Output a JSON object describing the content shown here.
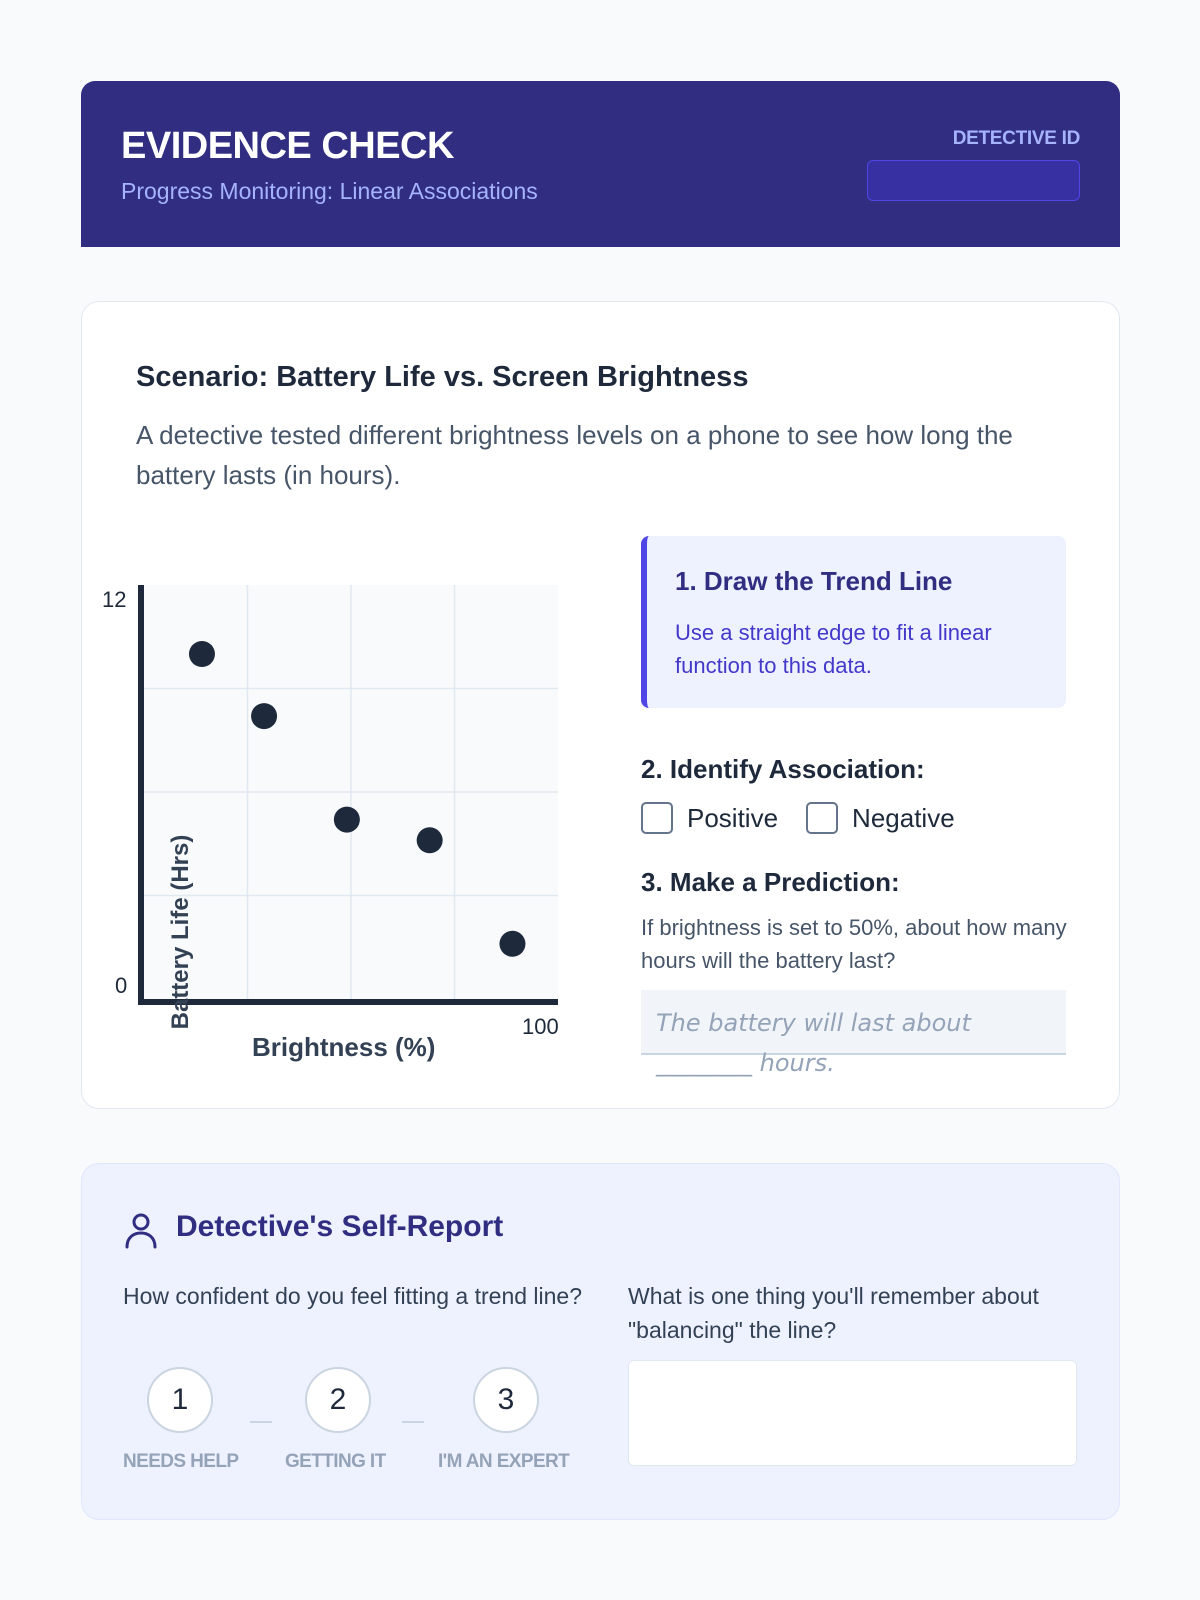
{
  "header": {
    "title": "EVIDENCE CHECK",
    "subtitle": "Progress Monitoring: Linear Associations",
    "detective_id_label": "DETECTIVE ID",
    "detective_id_value": ""
  },
  "scenario": {
    "title": "Scenario: Battery Life vs. Screen Brightness",
    "description": "A detective tested different brightness levels on a phone to see how long the battery lasts (in hours)."
  },
  "chart_data": {
    "type": "scatter",
    "xlabel": "Brightness (%)",
    "ylabel": "Battery Life (Hrs)",
    "xlim": [
      0,
      100
    ],
    "ylim": [
      0,
      12
    ],
    "x_tick_labels": [
      "100"
    ],
    "y_tick_labels": [
      "0",
      "12"
    ],
    "grid": true,
    "points": [
      {
        "x": 14,
        "y": 10
      },
      {
        "x": 29,
        "y": 8.2
      },
      {
        "x": 49,
        "y": 5.2
      },
      {
        "x": 69,
        "y": 4.6
      },
      {
        "x": 89,
        "y": 1.6
      }
    ]
  },
  "tasks": {
    "task1_title": "1. Draw the Trend Line",
    "task1_text": "Use a straight edge to fit a linear function to this data.",
    "task2_title": "2. Identify Association:",
    "options": [
      "Positive",
      "Negative"
    ],
    "task3_title": "3. Make a Prediction:",
    "task3_text": "If brightness is set to 50%, about how many hours will the battery last?",
    "prediction_placeholder": "The battery will last about ________ hours."
  },
  "self_report": {
    "title": "Detective's Self-Report",
    "q1": "How confident do you feel fitting a trend line?",
    "ratings": [
      {
        "value": "1",
        "label": "NEEDS HELP"
      },
      {
        "value": "2",
        "label": "GETTING IT"
      },
      {
        "value": "3",
        "label": "I'M AN EXPERT"
      }
    ],
    "q2": "What is one thing you'll remember about \"balancing\" the line?",
    "answer": ""
  },
  "colors": {
    "header_bg": "#312e81",
    "accent": "#4f46e5",
    "dot": "#1e293b"
  }
}
